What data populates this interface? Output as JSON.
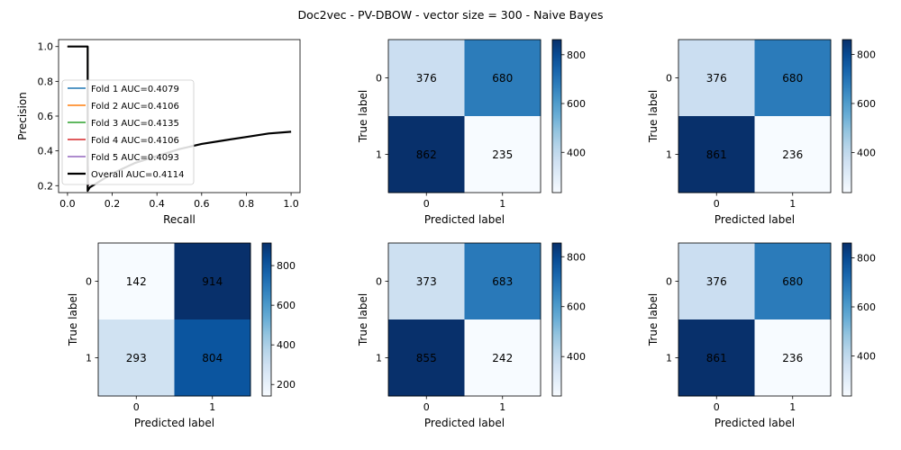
{
  "suptitle": "Doc2vec - PV-DBOW - vector size = 300 - Naive Bayes",
  "colors": {
    "fold1": "#1f77b4",
    "fold2": "#ff7f0e",
    "fold3": "#2ca02c",
    "fold4": "#d62728",
    "fold5": "#9467bd",
    "overall": "#000000",
    "cmap_low": "#f7fbff",
    "cmap_high": "#08306b",
    "text_on_light": "#08306b",
    "text_on_dark": "#f7fbff"
  },
  "chart_data": [
    {
      "type": "line",
      "panel": "pr-curve",
      "xlabel": "Recall",
      "ylabel": "Precision",
      "xlim": [
        -0.04,
        1.04
      ],
      "ylim": [
        0.16,
        1.04
      ],
      "xticks": [
        0.0,
        0.2,
        0.4,
        0.6,
        0.8,
        1.0
      ],
      "xtick_labels": [
        "0.0",
        "0.2",
        "0.4",
        "0.6",
        "0.8",
        "1.0"
      ],
      "yticks": [
        0.2,
        0.4,
        0.6,
        0.8,
        1.0
      ],
      "ytick_labels": [
        "0.2",
        "0.4",
        "0.6",
        "0.8",
        "1.0"
      ],
      "grid": false,
      "legend_position": "lower-left",
      "series": [
        {
          "name": "Fold 1 AUC=0.4079",
          "color_key": "fold1",
          "x": [
            0.0,
            0.09,
            0.09,
            0.093
          ],
          "y": [
            1.0,
            1.0,
            0.56,
            0.2
          ]
        },
        {
          "name": "Fold 2 AUC=0.4106",
          "color_key": "fold2",
          "x": [
            0.0,
            0.09,
            0.09,
            0.093
          ],
          "y": [
            1.0,
            1.0,
            0.56,
            0.2
          ]
        },
        {
          "name": "Fold 3 AUC=0.4135",
          "color_key": "fold3",
          "x": [
            0.0,
            0.09,
            0.09,
            0.093
          ],
          "y": [
            1.0,
            1.0,
            0.56,
            0.2
          ]
        },
        {
          "name": "Fold 4 AUC=0.4106",
          "color_key": "fold4",
          "x": [
            0.0,
            0.09,
            0.09,
            0.093
          ],
          "y": [
            1.0,
            1.0,
            0.56,
            0.2
          ]
        },
        {
          "name": "Fold 5 AUC=0.4093",
          "color_key": "fold5",
          "x": [
            0.0,
            0.09,
            0.09,
            0.093
          ],
          "y": [
            1.0,
            1.0,
            0.56,
            0.2
          ]
        },
        {
          "name": "Overall AUC=0.4114",
          "color_key": "overall",
          "x": [
            0.0,
            0.09,
            0.09,
            0.1,
            0.2,
            0.3,
            0.4,
            0.5,
            0.6,
            0.7,
            0.8,
            0.9,
            1.0
          ],
          "y": [
            1.0,
            1.0,
            0.17,
            0.19,
            0.27,
            0.33,
            0.37,
            0.41,
            0.44,
            0.46,
            0.48,
            0.5,
            0.51
          ]
        }
      ]
    },
    {
      "type": "heatmap",
      "panel": "confusion-matrix",
      "xlabel": "Predicted label",
      "ylabel": "True label",
      "x_categories": [
        "0",
        "1"
      ],
      "y_categories": [
        "0",
        "1"
      ],
      "values": [
        [
          376,
          680
        ],
        [
          862,
          235
        ]
      ],
      "colorbar_range": [
        235,
        862
      ],
      "colorbar_ticks": [
        400,
        600,
        800
      ],
      "colorbar_tick_labels": [
        "400",
        "600",
        "800"
      ]
    },
    {
      "type": "heatmap",
      "panel": "confusion-matrix",
      "xlabel": "Predicted label",
      "ylabel": "True label",
      "x_categories": [
        "0",
        "1"
      ],
      "y_categories": [
        "0",
        "1"
      ],
      "values": [
        [
          376,
          680
        ],
        [
          861,
          236
        ]
      ],
      "colorbar_range": [
        236,
        861
      ],
      "colorbar_ticks": [
        400,
        600,
        800
      ],
      "colorbar_tick_labels": [
        "400",
        "600",
        "800"
      ]
    },
    {
      "type": "heatmap",
      "panel": "confusion-matrix",
      "xlabel": "Predicted label",
      "ylabel": "True label",
      "x_categories": [
        "0",
        "1"
      ],
      "y_categories": [
        "0",
        "1"
      ],
      "values": [
        [
          142,
          914
        ],
        [
          293,
          804
        ]
      ],
      "colorbar_range": [
        142,
        914
      ],
      "colorbar_ticks": [
        200,
        400,
        600,
        800
      ],
      "colorbar_tick_labels": [
        "200",
        "400",
        "600",
        "800"
      ]
    },
    {
      "type": "heatmap",
      "panel": "confusion-matrix",
      "xlabel": "Predicted label",
      "ylabel": "True label",
      "x_categories": [
        "0",
        "1"
      ],
      "y_categories": [
        "0",
        "1"
      ],
      "values": [
        [
          373,
          683
        ],
        [
          855,
          242
        ]
      ],
      "colorbar_range": [
        242,
        855
      ],
      "colorbar_ticks": [
        400,
        600,
        800
      ],
      "colorbar_tick_labels": [
        "400",
        "600",
        "800"
      ]
    },
    {
      "type": "heatmap",
      "panel": "confusion-matrix",
      "xlabel": "Predicted label",
      "ylabel": "True label",
      "x_categories": [
        "0",
        "1"
      ],
      "y_categories": [
        "0",
        "1"
      ],
      "values": [
        [
          376,
          680
        ],
        [
          861,
          236
        ]
      ],
      "colorbar_range": [
        236,
        861
      ],
      "colorbar_ticks": [
        400,
        600,
        800
      ],
      "colorbar_tick_labels": [
        "400",
        "600",
        "800"
      ]
    }
  ]
}
